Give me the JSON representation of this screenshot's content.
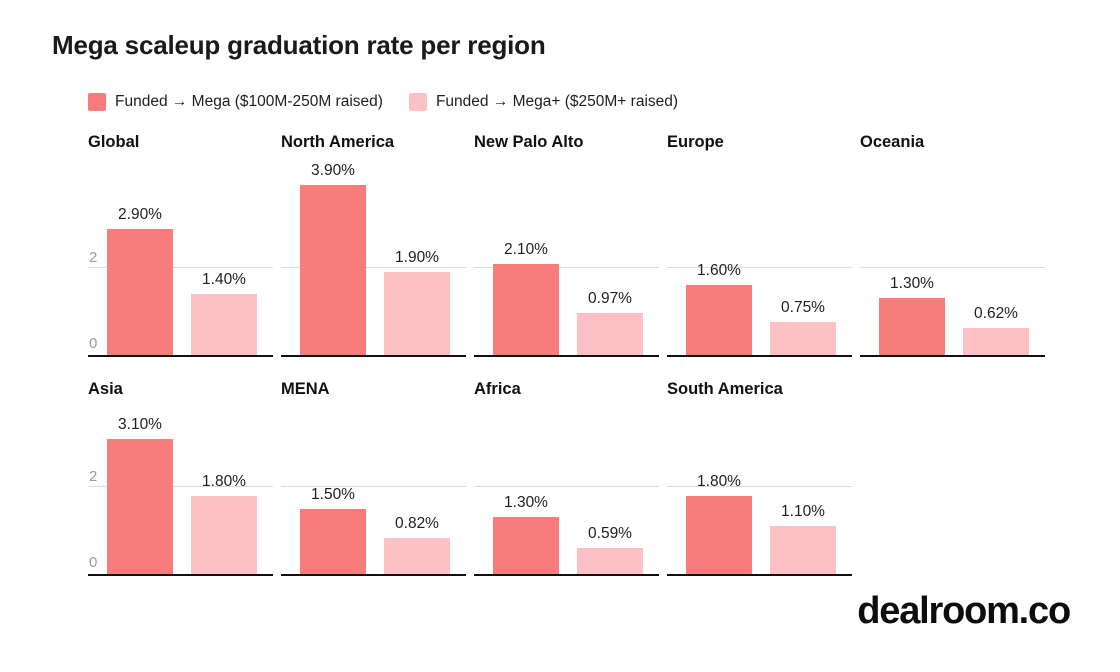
{
  "title": "Mega scaleup graduation rate per region",
  "branding": "dealroom.co",
  "colors": {
    "series1": "#F87C7C",
    "series2": "#FBC1C4",
    "gridline": "#DCDCDC",
    "axis": "#111111",
    "tick_label": "#9B9B9B",
    "label_text": "#1F1F1F"
  },
  "legend": {
    "items": [
      {
        "label": "Funded → Mega ($100M-250M raised)",
        "color_key": "series1"
      },
      {
        "label": "Funded → Mega+ ($250M+ raised)",
        "color_key": "series2"
      }
    ]
  },
  "chart_data": {
    "type": "bar",
    "title": "Mega scaleup graduation rate per region",
    "series_names": [
      "Funded → Mega ($100M-250M raised)",
      "Funded → Mega+ ($250M+ raised)"
    ],
    "unit": "%",
    "ylim": [
      0,
      4.2
    ],
    "yticks": [
      0,
      2
    ],
    "grid": "single horizontal gridline at y=2",
    "legend_position": "top-left",
    "rows": [
      {
        "panels": [
          {
            "region": "Global",
            "values": [
              2.9,
              1.4
            ],
            "labels": [
              "2.90%",
              "1.40%"
            ],
            "y_axis_labels": true
          },
          {
            "region": "North America",
            "values": [
              3.9,
              1.9
            ],
            "labels": [
              "3.90%",
              "1.90%"
            ],
            "y_axis_labels": false
          },
          {
            "region": "New Palo Alto",
            "values": [
              2.1,
              0.97
            ],
            "labels": [
              "2.10%",
              "0.97%"
            ],
            "y_axis_labels": false
          },
          {
            "region": "Europe",
            "values": [
              1.6,
              0.75
            ],
            "labels": [
              "1.60%",
              "0.75%"
            ],
            "y_axis_labels": false
          },
          {
            "region": "Oceania",
            "values": [
              1.3,
              0.62
            ],
            "labels": [
              "1.30%",
              "0.62%"
            ],
            "y_axis_labels": false
          }
        ]
      },
      {
        "panels": [
          {
            "region": "Asia",
            "values": [
              3.1,
              1.8
            ],
            "labels": [
              "3.10%",
              "1.80%"
            ],
            "y_axis_labels": true
          },
          {
            "region": "MENA",
            "values": [
              1.5,
              0.82
            ],
            "labels": [
              "1.50%",
              "0.82%"
            ],
            "y_axis_labels": false
          },
          {
            "region": "Africa",
            "values": [
              1.3,
              0.59
            ],
            "labels": [
              "1.30%",
              "0.59%"
            ],
            "y_axis_labels": false
          },
          {
            "region": "South America",
            "values": [
              1.8,
              1.1
            ],
            "labels": [
              "1.80%",
              "1.10%"
            ],
            "y_axis_labels": false
          }
        ]
      }
    ]
  }
}
